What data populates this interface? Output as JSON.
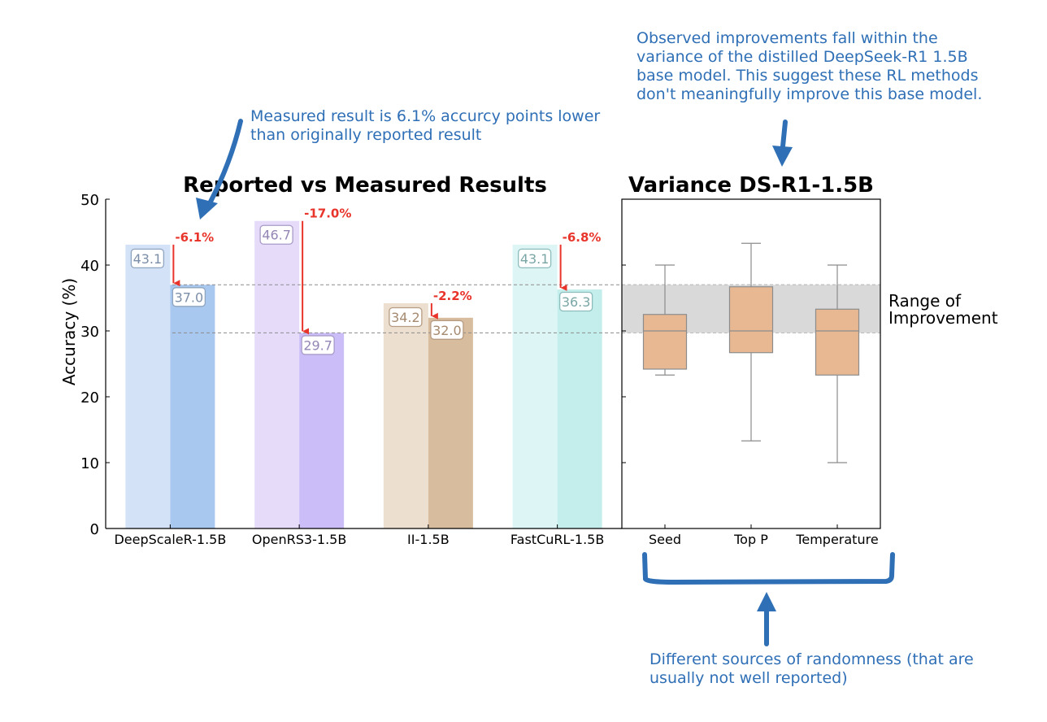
{
  "chart_data": [
    {
      "type": "bar",
      "title": "Reported vs Measured Results",
      "ylabel": "Accuracy (%)",
      "ylim": [
        0,
        50
      ],
      "yticks": [
        0,
        10,
        20,
        30,
        40,
        50
      ],
      "categories": [
        "DeepScaleR-1.5B",
        "OpenRS3-1.5B",
        "II-1.5B",
        "FastCuRL-1.5B"
      ],
      "series": [
        {
          "values": [
            43.1,
            46.7,
            34.2,
            43.1
          ]
        },
        {
          "values": [
            37.0,
            29.7,
            32.0,
            36.3
          ]
        }
      ],
      "value_labels": {
        "reported": [
          "43.1",
          "46.7",
          "34.2",
          "43.1"
        ],
        "measured": [
          "37.0",
          "29.7",
          "32.0",
          "36.3"
        ]
      },
      "drops": [
        "-6.1%",
        "-17.0%",
        "-2.2%",
        "-6.8%"
      ],
      "colors": {
        "reported": [
          "#d4e2f7",
          "#e6dcfa",
          "#ecdfcf",
          "#def5f5"
        ],
        "measured": [
          "#a9c8ef",
          "#cbbdf8",
          "#d8bc9e",
          "#c4eeec"
        ],
        "drop_arrow": "#e8342b",
        "ref_line": "#8c8c8c"
      }
    },
    {
      "type": "box",
      "title": "Variance DS-R1-1.5B",
      "categories": [
        "Seed",
        "Top P",
        "Temperature"
      ],
      "ylim": [
        0,
        50
      ],
      "boxes": [
        {
          "min": 23.3,
          "q1": 24.2,
          "median": 30.0,
          "q3": 32.5,
          "max": 40.0
        },
        {
          "min": 13.3,
          "q1": 26.7,
          "median": 30.0,
          "q3": 36.7,
          "max": 43.3
        },
        {
          "min": 10.0,
          "q1": 23.3,
          "median": 30.0,
          "q3": 33.3,
          "max": 40.0
        }
      ],
      "band": {
        "low": 29.7,
        "high": 37.0,
        "label_line1": "Range of",
        "label_line2": "Improvement",
        "color": "#d9d9d9"
      },
      "box_color": "#e8b893"
    }
  ],
  "annotations": {
    "measured_note": "Measured result is 6.1% accurcy points lower than originally reported result",
    "variance_note": "Observed improvements fall within the variance of the distilled DeepSeek-R1 1.5B base model. This suggest these RL methods don't meaningfully improve this base model.",
    "randomness_note": "Different sources of randomness (that are usually not well reported)",
    "color": "#2f6fb6"
  }
}
